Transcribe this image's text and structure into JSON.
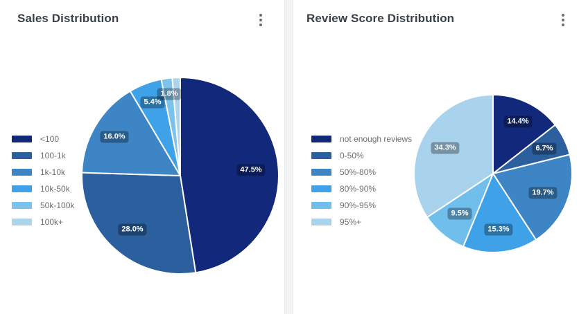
{
  "icons": {
    "card_menu": "kebab-vertical-dots"
  },
  "colors": {
    "badge_bg": "rgba(0,0,0,0.3)",
    "badge_text": "#ffffff",
    "title_text": "#3b4148",
    "legend_text": "#6f6f6f",
    "divider": "#f2f3f4",
    "slice_border": "#ffffff"
  },
  "chart_data": [
    {
      "type": "pie",
      "title": "Sales Distribution",
      "legend_position": "left",
      "start_angle_deg": 0,
      "direction": "clockwise",
      "slices": [
        {
          "label": "<100",
          "value": 47.5,
          "display": "47.5%",
          "color": "#12297b",
          "label_visible": true,
          "label_r": 0.72
        },
        {
          "label": "100-1k",
          "value": 28.0,
          "display": "28.0%",
          "color": "#2c5f9e",
          "label_visible": true,
          "label_r": 0.73
        },
        {
          "label": "1k-10k",
          "value": 16.0,
          "display": "16.0%",
          "color": "#3d85c4",
          "label_visible": true,
          "label_r": 0.78
        },
        {
          "label": "10k-50k",
          "value": 5.4,
          "display": "5.4%",
          "color": "#3fa2e8",
          "label_visible": true,
          "label_r": 0.8
        },
        {
          "label": "50k-100k",
          "value": 1.8,
          "display": "1.8%",
          "color": "#7cc2ec",
          "label_visible": true,
          "label_r": 0.84
        },
        {
          "label": "100k+",
          "value": 1.3,
          "display": "1.3%",
          "color": "#aed4ec",
          "label_visible": false,
          "label_r": 0.84
        }
      ]
    },
    {
      "type": "pie",
      "title": "Review Score Distribution",
      "legend_position": "left",
      "start_angle_deg": 0,
      "direction": "clockwise",
      "slices": [
        {
          "label": "not enough reviews",
          "value": 14.4,
          "display": "14.4%",
          "color": "#12297b",
          "label_visible": true,
          "label_r": 0.73
        },
        {
          "label": "0-50%",
          "value": 6.7,
          "display": "6.7%",
          "color": "#2c5f9e",
          "label_visible": true,
          "label_r": 0.72
        },
        {
          "label": "50%-80%",
          "value": 19.7,
          "display": "19.7%",
          "color": "#3d85c4",
          "label_visible": true,
          "label_r": 0.68
        },
        {
          "label": "80%-90%",
          "value": 15.3,
          "display": "15.3%",
          "color": "#3fa2e8",
          "label_visible": true,
          "label_r": 0.71
        },
        {
          "label": "90%-95%",
          "value": 9.5,
          "display": "9.5%",
          "color": "#6fbeec",
          "label_visible": true,
          "label_r": 0.66
        },
        {
          "label": "95%+",
          "value": 34.3,
          "display": "34.3%",
          "color": "#a9d3ec",
          "label_visible": true,
          "label_r": 0.69
        }
      ]
    }
  ]
}
